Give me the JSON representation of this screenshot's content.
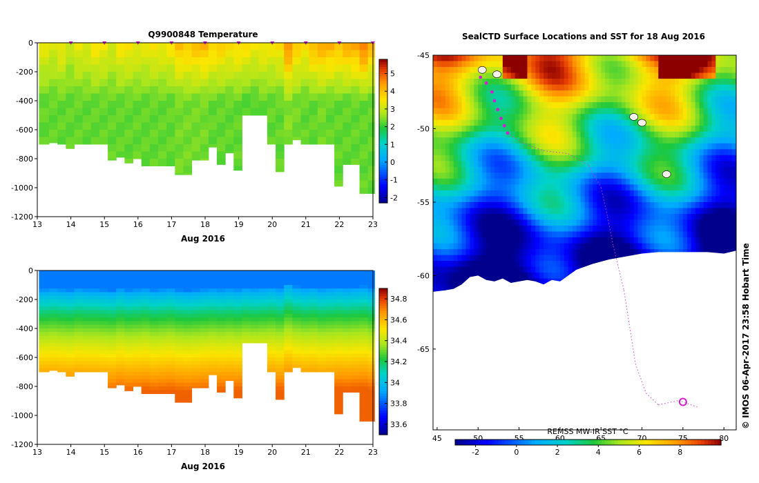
{
  "page": {
    "footer_vertical": "© IMOS 06-Apr-2017 23:58 Hobart Time"
  },
  "chart_data": [
    {
      "id": "temperature",
      "type": "heatmap",
      "title": "Q9900848  Temperature",
      "xlabel": "Aug 2016",
      "ylabel": "",
      "x_ticks": [
        "13",
        "14",
        "15",
        "16",
        "17",
        "18",
        "19",
        "20",
        "21",
        "22",
        "23"
      ],
      "xlim": [
        13,
        23
      ],
      "y_ticks": [
        "0",
        "-200",
        "-400",
        "-600",
        "-800",
        "-1000",
        "-1200"
      ],
      "ylim": [
        -1200,
        0
      ],
      "colorbar": {
        "ticks": [
          "-2",
          "-1",
          "0",
          "1",
          "2",
          "3",
          "4",
          "5"
        ],
        "range": [
          -2.3,
          5.8
        ]
      },
      "profile_days": [
        13.05,
        13.35,
        13.6,
        13.85,
        14.1,
        14.35,
        14.6,
        14.85,
        15.1,
        15.35,
        15.6,
        15.85,
        16.1,
        16.35,
        16.6,
        16.85,
        17.1,
        17.35,
        17.6,
        17.85,
        18.1,
        18.35,
        18.6,
        18.85,
        19.1,
        19.35,
        19.6,
        19.85,
        20.1,
        20.35,
        20.6,
        20.85,
        21.1,
        21.35,
        21.6,
        21.85,
        22.1,
        22.35,
        22.6,
        22.85
      ],
      "profile_max_depth_m": [
        700,
        690,
        700,
        730,
        700,
        700,
        700,
        700,
        810,
        790,
        830,
        800,
        850,
        850,
        850,
        850,
        910,
        910,
        810,
        810,
        720,
        840,
        760,
        880,
        500,
        500,
        500,
        700,
        890,
        700,
        670,
        700,
        700,
        700,
        700,
        990,
        840,
        840,
        1040,
        1040
      ],
      "surface_temp_degC": [
        3.4,
        3.2,
        3.5,
        3.0,
        3.4,
        3.3,
        3.6,
        3.5,
        3.2,
        3.6,
        3.6,
        3.4,
        3.4,
        3.6,
        3.5,
        3.6,
        4.1,
        4.0,
        4.1,
        4.2,
        3.9,
        3.9,
        3.7,
        3.8,
        3.7,
        3.5,
        3.6,
        3.5,
        3.7,
        4.7,
        3.9,
        3.7,
        4.2,
        4.3,
        4.3,
        4.1,
        4.3,
        4.4,
        4.9,
        4.2
      ],
      "deep_temp_degC": [
        2.3,
        2.3,
        2.3,
        2.3,
        2.3,
        2.3,
        2.3,
        2.3,
        2.3,
        2.3,
        2.3,
        2.3,
        2.3,
        2.3,
        2.3,
        2.3,
        2.4,
        2.4,
        2.4,
        2.4,
        2.3,
        2.3,
        2.3,
        2.3,
        2.2,
        2.2,
        2.3,
        2.3,
        2.3,
        2.5,
        2.4,
        2.3,
        2.3,
        2.4,
        2.3,
        2.3,
        2.3,
        2.3,
        2.3,
        2.3
      ],
      "surfacing_markers_days": [
        14,
        15,
        16,
        17,
        18,
        19,
        20,
        21,
        22,
        23
      ]
    },
    {
      "id": "salinity",
      "type": "heatmap",
      "title": "",
      "xlabel": "Aug 2016",
      "ylabel": "",
      "x_ticks": [
        "13",
        "14",
        "15",
        "16",
        "17",
        "18",
        "19",
        "20",
        "21",
        "22",
        "23"
      ],
      "xlim": [
        13,
        23
      ],
      "y_ticks": [
        "0",
        "-200",
        "-400",
        "-600",
        "-800",
        "-1000",
        "-1200"
      ],
      "ylim": [
        -1200,
        0
      ],
      "colorbar": {
        "ticks": [
          "33.6",
          "33.8",
          "34",
          "34.2",
          "34.4",
          "34.6",
          "34.8"
        ],
        "range": [
          33.5,
          34.9
        ]
      },
      "surface_salinity": 33.85,
      "halocline_depth_m": [
        260,
        250,
        260,
        270,
        250,
        260,
        260,
        270,
        280,
        250,
        270,
        260,
        250,
        270,
        260,
        250,
        270,
        280,
        270,
        260,
        250,
        260,
        250,
        260,
        240,
        250,
        240,
        230,
        250,
        180,
        220,
        240,
        230,
        250,
        240,
        230,
        240,
        230,
        220,
        250
      ],
      "deep_salinity": 34.75
    },
    {
      "id": "sst_map",
      "type": "heatmap",
      "title": "SealCTD Surface Locations and SST for 18 Aug 2016",
      "xlabel": "",
      "ylabel": "",
      "x_ticks": [
        "45",
        "50",
        "55",
        "60",
        "65",
        "70",
        "75",
        "80"
      ],
      "xlim": [
        44.5,
        81.5
      ],
      "y_ticks": [
        "-45",
        "-50",
        "-55",
        "-60",
        "-65"
      ],
      "ylim": [
        -70.5,
        -45
      ],
      "colorbar": {
        "label": "REMSS MW-IR SST °C",
        "ticks": [
          "-2",
          "0",
          "2",
          "4",
          "6",
          "8"
        ],
        "range": [
          -3,
          10
        ]
      },
      "ice_edge_lat": [
        -61.1,
        -61.0,
        -60.9,
        -60.6,
        -60.1,
        -60.0,
        -60.3,
        -60.4,
        -60.2,
        -60.5,
        -60.4,
        -60.3,
        -60.4,
        -60.6,
        -60.3,
        -60.4,
        -60.0,
        -59.6,
        -59.2,
        -58.9,
        -58.7,
        -58.5,
        -58.4,
        -58.4,
        -58.4,
        -58.5,
        -58.3
      ],
      "ice_edge_lon": [
        44.5,
        46,
        47,
        48,
        49,
        50,
        51,
        52,
        53,
        54,
        55,
        56,
        57,
        58,
        59,
        60,
        61,
        62,
        64,
        66,
        68,
        70,
        72,
        75,
        78,
        80,
        81.5
      ],
      "track_highlighted": [
        {
          "lon": 50.3,
          "lat": -46.5
        },
        {
          "lon": 51.0,
          "lat": -46.9
        },
        {
          "lon": 51.7,
          "lat": -47.5
        },
        {
          "lon": 52.0,
          "lat": -48.1
        },
        {
          "lon": 52.4,
          "lat": -48.7
        },
        {
          "lon": 52.8,
          "lat": -49.3
        },
        {
          "lon": 53.2,
          "lat": -49.8
        },
        {
          "lon": 53.6,
          "lat": -50.3
        }
      ],
      "track_faint": [
        {
          "lon": 53.6,
          "lat": -50.3
        },
        {
          "lon": 55.5,
          "lat": -51.0
        },
        {
          "lon": 58.0,
          "lat": -51.5
        },
        {
          "lon": 61.0,
          "lat": -51.7
        },
        {
          "lon": 63.5,
          "lat": -52.5
        },
        {
          "lon": 65.0,
          "lat": -54.0
        },
        {
          "lon": 65.8,
          "lat": -56.0
        },
        {
          "lon": 66.5,
          "lat": -58.0
        },
        {
          "lon": 67.8,
          "lat": -61.0
        },
        {
          "lon": 68.5,
          "lat": -63.5
        },
        {
          "lon": 69.2,
          "lat": -66.0
        },
        {
          "lon": 70.5,
          "lat": -68.0
        },
        {
          "lon": 72.0,
          "lat": -68.8
        },
        {
          "lon": 74.5,
          "lat": -68.5
        },
        {
          "lon": 77.0,
          "lat": -69.0
        }
      ],
      "deployment_site": {
        "lon": 75.0,
        "lat": -68.6
      },
      "cloud_patches": [
        {
          "lon": 50.5,
          "lat": -46.0
        },
        {
          "lon": 52.3,
          "lat": -46.3
        },
        {
          "lon": 69.0,
          "lat": -49.2
        },
        {
          "lon": 70.0,
          "lat": -49.6
        },
        {
          "lon": 73.0,
          "lat": -53.1
        }
      ]
    }
  ]
}
